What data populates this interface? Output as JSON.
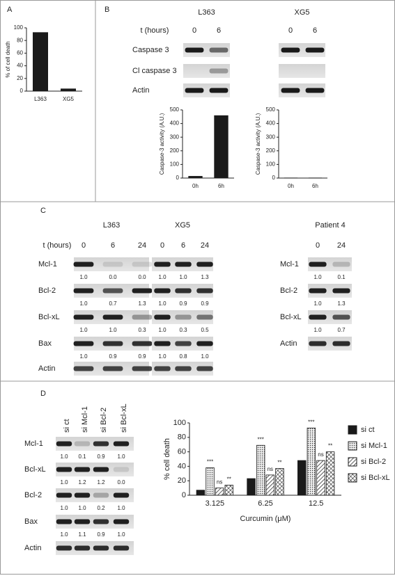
{
  "panel_labels": [
    "A",
    "B",
    "C",
    "D"
  ],
  "panel_b": {
    "time_label": "t (hours)",
    "row_labels": [
      "Caspase 3",
      "Cl caspase 3",
      "Actin"
    ],
    "blots": [
      {
        "name": "L363",
        "times": [
          0,
          6
        ]
      },
      {
        "name": "XG5",
        "times": [
          0,
          6
        ]
      }
    ]
  },
  "panel_c": {
    "time_label": "t (hours)",
    "row_labels": [
      "Mcl-1",
      "Bcl-2",
      "Bcl-xL",
      "Bax",
      "Actin"
    ],
    "blots": [
      {
        "name": "L363",
        "times": [
          0,
          6,
          24
        ],
        "quant": [
          [
            "1.0",
            "0.0",
            "0.0"
          ],
          [
            "1.0",
            "0.7",
            "1.3"
          ],
          [
            "1.0",
            "1.0",
            "0.3"
          ],
          [
            "1.0",
            "0.9",
            "0.9"
          ]
        ]
      },
      {
        "name": "XG5",
        "times": [
          0,
          6,
          24
        ],
        "quant": [
          [
            "1.0",
            "1.0",
            "1.3"
          ],
          [
            "1.0",
            "0.9",
            "0.9"
          ],
          [
            "1.0",
            "0.3",
            "0.5"
          ],
          [
            "1.0",
            "0.8",
            "1.0"
          ]
        ]
      }
    ],
    "patient": {
      "name": "Patient 4",
      "times": [
        0,
        24
      ],
      "row_labels": [
        "Mcl-1",
        "Bcl-2",
        "Bcl-xL",
        "Actin"
      ],
      "quant": [
        [
          "1.0",
          "0.1"
        ],
        [
          "1.0",
          "1.3"
        ],
        [
          "1.0",
          "0.7"
        ]
      ]
    }
  },
  "panel_d": {
    "lanes": [
      "si ct",
      "si Mcl-1",
      "si Bcl-2",
      "si Bcl-xL"
    ],
    "row_labels": [
      "Mcl-1",
      "Bcl-xL",
      "Bcl-2",
      "Bax",
      "Actin"
    ],
    "quant": [
      [
        "1.0",
        "0.1",
        "0.9",
        "1.0"
      ],
      [
        "1.0",
        "1.2",
        "1.2",
        "0.0"
      ],
      [
        "1.0",
        "1.0",
        "0.2",
        "1.0"
      ],
      [
        "1.0",
        "1.1",
        "0.9",
        "1.0"
      ]
    ]
  },
  "chart_data": [
    {
      "type": "bar",
      "y_label": "% of cell death",
      "categories": [
        "L363",
        "XG5"
      ],
      "values": [
        93,
        4
      ],
      "color": "#1a1a1a",
      "ylim": [
        0,
        100
      ],
      "yticks": [
        0,
        20,
        40,
        60,
        80,
        100
      ]
    },
    {
      "type": "bar",
      "y_label": "Caspase-3 activity (A.U.)",
      "categories": [
        "0h",
        "6h"
      ],
      "values": [
        15,
        460
      ],
      "color": "#1a1a1a",
      "ylim": [
        0,
        500
      ],
      "yticks": [
        0,
        100,
        200,
        300,
        400,
        500
      ]
    },
    {
      "type": "bar",
      "y_label": "Caspase-3 activity (A.U.)",
      "categories": [
        "0h",
        "6h"
      ],
      "values": [
        3,
        3
      ],
      "color": "#1a1a1a",
      "ylim": [
        0,
        500
      ],
      "yticks": [
        0,
        100,
        200,
        300,
        400,
        500
      ]
    },
    {
      "type": "bar",
      "y_label": "% cell death",
      "x_label": "Curcumin (μM)",
      "categories": [
        "3.125",
        "6.25",
        "12.5"
      ],
      "ylim": [
        0,
        100
      ],
      "yticks": [
        0,
        20,
        40,
        60,
        80,
        100
      ],
      "legend": "right",
      "series": [
        {
          "name": "si ct",
          "color": "#1a1a1a",
          "pattern": "solid",
          "values": [
            7,
            23,
            48
          ]
        },
        {
          "name": "si Mcl-1",
          "color": "#1a1a1a",
          "pattern": "dots",
          "values": [
            38,
            69,
            93
          ],
          "significance": [
            "***",
            "***",
            "***"
          ]
        },
        {
          "name": "si Bcl-2",
          "color": "#1a1a1a",
          "pattern": "hatch",
          "values": [
            10,
            28,
            48
          ],
          "significance": [
            "ns",
            "ns",
            "ns"
          ]
        },
        {
          "name": "si Bcl-xL",
          "color": "#1a1a1a",
          "pattern": "crosshatch",
          "values": [
            14,
            37,
            60
          ],
          "significance": [
            "**",
            "**",
            "**"
          ]
        }
      ]
    }
  ]
}
